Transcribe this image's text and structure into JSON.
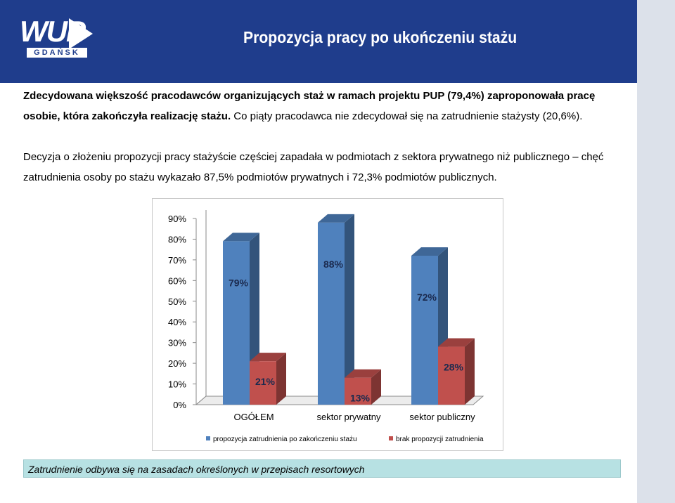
{
  "header": {
    "logo_text": "WUP",
    "logo_subtext": "GDAŃSK",
    "title": "Propozycja pracy po ukończeniu stażu"
  },
  "body": {
    "para1_bold": "Zdecydowana większość pracodawców organizujących staż w ramach projektu PUP (79,4%) zaproponowała pracę osobie, która zakończyła realizację stażu.",
    "para1_rest": " Co piąty pracodawca nie zdecydował się na zatrudnienie stażysty (20,6%).",
    "para2": "Decyzja o złożeniu propozycji pracy stażyście częściej zapadała w podmiotach z sektora prywatnego niż publicznego – chęć zatrudnienia osoby po stażu wykazało 87,5% podmiotów prywatnych i 72,3% podmiotów publicznych."
  },
  "chart_data": {
    "type": "bar",
    "style": "3d-clustered",
    "categories": [
      "OGÓŁEM",
      "sektor prywatny",
      "sektor publiczny"
    ],
    "series": [
      {
        "name": "propozycja zatrudnienia po zakończeniu stażu",
        "values": [
          79,
          88,
          72
        ],
        "labels": [
          "79%",
          "88%",
          "72%"
        ],
        "color": "#4f81bd"
      },
      {
        "name": "brak propozycji zatrudnienia",
        "values": [
          21,
          13,
          28
        ],
        "labels": [
          "21%",
          "13%",
          "28%"
        ],
        "color": "#c0504d"
      }
    ],
    "yticks": [
      "0%",
      "10%",
      "20%",
      "30%",
      "40%",
      "50%",
      "60%",
      "70%",
      "80%",
      "90%"
    ],
    "ylim": [
      0,
      90
    ],
    "legend_position": "bottom"
  },
  "footer": {
    "text": "Zatrudnienie odbywa się na zasadach określonych w przepisach resortowych"
  },
  "colors": {
    "header_bg": "#1f3d8c",
    "footer_bg": "#b7e1e3"
  }
}
